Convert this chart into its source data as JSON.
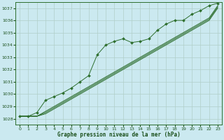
{
  "title": "Graphe pression niveau de la mer (hPa)",
  "bg_color": "#cbe9f0",
  "grid_color": "#b0cfc8",
  "line_color": "#2d6e2d",
  "marker_color": "#2d6e2d",
  "xlim": [
    -0.5,
    23.5
  ],
  "ylim": [
    1027.5,
    1037.5
  ],
  "yticks": [
    1028,
    1029,
    1030,
    1031,
    1032,
    1033,
    1034,
    1035,
    1036,
    1037
  ],
  "xticks": [
    0,
    1,
    2,
    3,
    4,
    5,
    6,
    7,
    8,
    9,
    10,
    11,
    12,
    13,
    14,
    15,
    16,
    17,
    18,
    19,
    20,
    21,
    22,
    23
  ],
  "series_with_markers": [
    1028.2,
    1028.2,
    1028.5,
    1029.5,
    1029.8,
    1030.1,
    1030.5,
    1031.0,
    1031.5,
    1033.2,
    1034.0,
    1034.3,
    1034.5,
    1034.2,
    1034.3,
    1034.5,
    1035.2,
    1035.7,
    1036.0,
    1036.0,
    1036.5,
    1036.8,
    1037.2,
    1037.4
  ],
  "series_linear": [
    [
      1028.2,
      1028.2,
      1028.2,
      1028.4,
      1028.8,
      1029.2,
      1029.6,
      1030.0,
      1030.4,
      1030.8,
      1031.2,
      1031.6,
      1032.0,
      1032.4,
      1032.8,
      1033.2,
      1033.6,
      1034.0,
      1034.4,
      1034.8,
      1035.2,
      1035.6,
      1036.0,
      1037.0
    ],
    [
      1028.2,
      1028.2,
      1028.2,
      1028.5,
      1028.9,
      1029.3,
      1029.7,
      1030.1,
      1030.5,
      1030.9,
      1031.3,
      1031.7,
      1032.1,
      1032.5,
      1032.9,
      1033.3,
      1033.7,
      1034.1,
      1034.5,
      1034.9,
      1035.3,
      1035.7,
      1036.1,
      1037.1
    ],
    [
      1028.2,
      1028.2,
      1028.2,
      1028.6,
      1029.0,
      1029.4,
      1029.8,
      1030.2,
      1030.6,
      1031.0,
      1031.4,
      1031.8,
      1032.2,
      1032.6,
      1033.0,
      1033.4,
      1033.8,
      1034.2,
      1034.6,
      1035.0,
      1035.4,
      1035.8,
      1036.2,
      1037.2
    ]
  ]
}
